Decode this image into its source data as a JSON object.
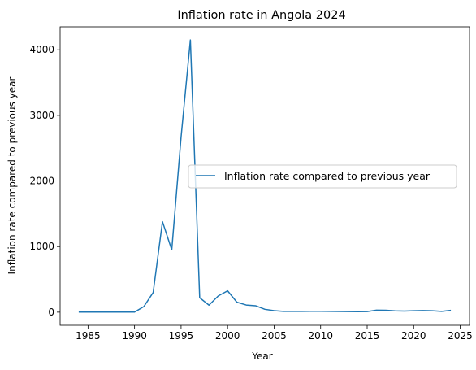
{
  "chart_data": {
    "type": "line",
    "title": "Inflation rate in Angola 2024",
    "xlabel": "Year",
    "ylabel": "Inflation rate compared to previous year",
    "xlim": [
      1982,
      2026
    ],
    "ylim": [
      -200,
      4350
    ],
    "xticks": [
      1985,
      1990,
      1995,
      2000,
      2005,
      2010,
      2015,
      2020,
      2025
    ],
    "yticks": [
      0,
      1000,
      2000,
      3000,
      4000
    ],
    "grid": false,
    "legend_position": "center-right",
    "series": [
      {
        "name": "Inflation rate compared to previous year",
        "color": "#1f77b4",
        "x": [
          1984,
          1985,
          1986,
          1987,
          1988,
          1989,
          1990,
          1991,
          1992,
          1993,
          1994,
          1995,
          1996,
          1997,
          1998,
          1999,
          2000,
          2001,
          2002,
          2003,
          2004,
          2005,
          2006,
          2007,
          2008,
          2009,
          2010,
          2011,
          2012,
          2013,
          2014,
          2015,
          2016,
          2017,
          2018,
          2019,
          2020,
          2021,
          2022,
          2023,
          2024
        ],
        "values": [
          1.8,
          1.8,
          1.8,
          1.8,
          1.8,
          1.8,
          1.8,
          85,
          300,
          1380,
          950,
          2670,
          4150,
          220,
          107,
          248,
          325,
          152,
          109,
          98,
          44,
          23,
          13,
          12,
          12,
          14,
          14,
          13,
          10,
          9,
          7,
          9,
          31,
          30,
          20,
          17,
          22,
          25,
          21,
          13,
          28
        ]
      }
    ]
  }
}
